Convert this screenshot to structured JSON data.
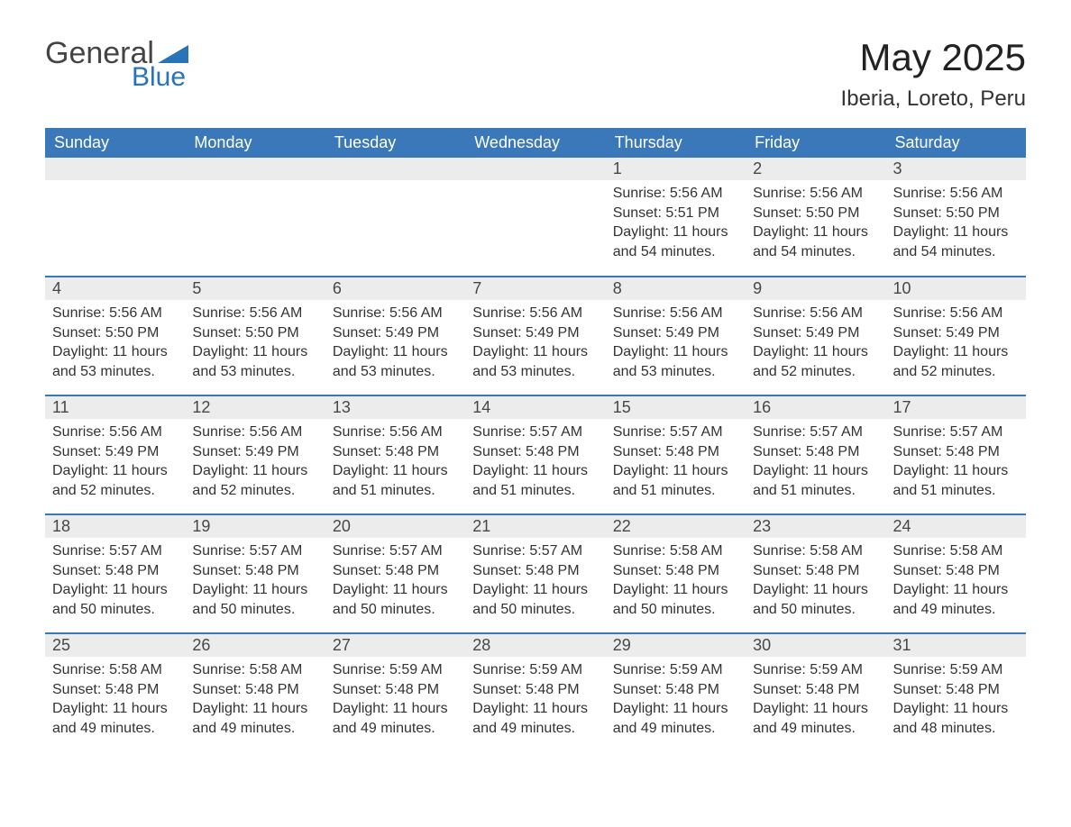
{
  "logo": {
    "general": "General",
    "blue": "Blue",
    "brand_color": "#2973b8"
  },
  "title": "May 2025",
  "location": "Iberia, Loreto, Peru",
  "colors": {
    "header_bg": "#3a78b9",
    "header_text": "#ffffff",
    "daynum_bg": "#ececec",
    "daynum_text": "#474747",
    "body_text": "#333333",
    "rule": "#3a78b9",
    "background": "#ffffff"
  },
  "calendar": {
    "type": "table",
    "columns": [
      "Sunday",
      "Monday",
      "Tuesday",
      "Wednesday",
      "Thursday",
      "Friday",
      "Saturday"
    ],
    "weeks": [
      [
        null,
        null,
        null,
        null,
        {
          "n": "1",
          "sunrise": "5:56 AM",
          "sunset": "5:51 PM",
          "daylight": "11 hours and 54 minutes."
        },
        {
          "n": "2",
          "sunrise": "5:56 AM",
          "sunset": "5:50 PM",
          "daylight": "11 hours and 54 minutes."
        },
        {
          "n": "3",
          "sunrise": "5:56 AM",
          "sunset": "5:50 PM",
          "daylight": "11 hours and 54 minutes."
        }
      ],
      [
        {
          "n": "4",
          "sunrise": "5:56 AM",
          "sunset": "5:50 PM",
          "daylight": "11 hours and 53 minutes."
        },
        {
          "n": "5",
          "sunrise": "5:56 AM",
          "sunset": "5:50 PM",
          "daylight": "11 hours and 53 minutes."
        },
        {
          "n": "6",
          "sunrise": "5:56 AM",
          "sunset": "5:49 PM",
          "daylight": "11 hours and 53 minutes."
        },
        {
          "n": "7",
          "sunrise": "5:56 AM",
          "sunset": "5:49 PM",
          "daylight": "11 hours and 53 minutes."
        },
        {
          "n": "8",
          "sunrise": "5:56 AM",
          "sunset": "5:49 PM",
          "daylight": "11 hours and 53 minutes."
        },
        {
          "n": "9",
          "sunrise": "5:56 AM",
          "sunset": "5:49 PM",
          "daylight": "11 hours and 52 minutes."
        },
        {
          "n": "10",
          "sunrise": "5:56 AM",
          "sunset": "5:49 PM",
          "daylight": "11 hours and 52 minutes."
        }
      ],
      [
        {
          "n": "11",
          "sunrise": "5:56 AM",
          "sunset": "5:49 PM",
          "daylight": "11 hours and 52 minutes."
        },
        {
          "n": "12",
          "sunrise": "5:56 AM",
          "sunset": "5:49 PM",
          "daylight": "11 hours and 52 minutes."
        },
        {
          "n": "13",
          "sunrise": "5:56 AM",
          "sunset": "5:48 PM",
          "daylight": "11 hours and 51 minutes."
        },
        {
          "n": "14",
          "sunrise": "5:57 AM",
          "sunset": "5:48 PM",
          "daylight": "11 hours and 51 minutes."
        },
        {
          "n": "15",
          "sunrise": "5:57 AM",
          "sunset": "5:48 PM",
          "daylight": "11 hours and 51 minutes."
        },
        {
          "n": "16",
          "sunrise": "5:57 AM",
          "sunset": "5:48 PM",
          "daylight": "11 hours and 51 minutes."
        },
        {
          "n": "17",
          "sunrise": "5:57 AM",
          "sunset": "5:48 PM",
          "daylight": "11 hours and 51 minutes."
        }
      ],
      [
        {
          "n": "18",
          "sunrise": "5:57 AM",
          "sunset": "5:48 PM",
          "daylight": "11 hours and 50 minutes."
        },
        {
          "n": "19",
          "sunrise": "5:57 AM",
          "sunset": "5:48 PM",
          "daylight": "11 hours and 50 minutes."
        },
        {
          "n": "20",
          "sunrise": "5:57 AM",
          "sunset": "5:48 PM",
          "daylight": "11 hours and 50 minutes."
        },
        {
          "n": "21",
          "sunrise": "5:57 AM",
          "sunset": "5:48 PM",
          "daylight": "11 hours and 50 minutes."
        },
        {
          "n": "22",
          "sunrise": "5:58 AM",
          "sunset": "5:48 PM",
          "daylight": "11 hours and 50 minutes."
        },
        {
          "n": "23",
          "sunrise": "5:58 AM",
          "sunset": "5:48 PM",
          "daylight": "11 hours and 50 minutes."
        },
        {
          "n": "24",
          "sunrise": "5:58 AM",
          "sunset": "5:48 PM",
          "daylight": "11 hours and 49 minutes."
        }
      ],
      [
        {
          "n": "25",
          "sunrise": "5:58 AM",
          "sunset": "5:48 PM",
          "daylight": "11 hours and 49 minutes."
        },
        {
          "n": "26",
          "sunrise": "5:58 AM",
          "sunset": "5:48 PM",
          "daylight": "11 hours and 49 minutes."
        },
        {
          "n": "27",
          "sunrise": "5:59 AM",
          "sunset": "5:48 PM",
          "daylight": "11 hours and 49 minutes."
        },
        {
          "n": "28",
          "sunrise": "5:59 AM",
          "sunset": "5:48 PM",
          "daylight": "11 hours and 49 minutes."
        },
        {
          "n": "29",
          "sunrise": "5:59 AM",
          "sunset": "5:48 PM",
          "daylight": "11 hours and 49 minutes."
        },
        {
          "n": "30",
          "sunrise": "5:59 AM",
          "sunset": "5:48 PM",
          "daylight": "11 hours and 49 minutes."
        },
        {
          "n": "31",
          "sunrise": "5:59 AM",
          "sunset": "5:48 PM",
          "daylight": "11 hours and 48 minutes."
        }
      ]
    ],
    "labels": {
      "sunrise": "Sunrise:",
      "sunset": "Sunset:",
      "daylight": "Daylight:"
    }
  }
}
